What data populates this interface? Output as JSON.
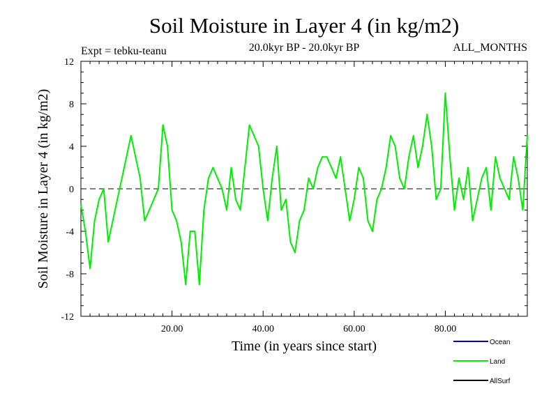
{
  "chart_data": {
    "type": "line",
    "title": "Soil Moisture in Layer 4 (in kg/m2)",
    "experiment": "Expt = tebku-teanu",
    "period": "20.0kyr BP - 20.0kyr BP",
    "months": "ALL_MONTHS",
    "xlabel": "Time (in years since start)",
    "ylabel": "Soil Moisture in Layer 4 (in kg/m2)",
    "xlim": [
      0,
      98
    ],
    "ylim": [
      -12,
      12
    ],
    "x_ticks": [
      20,
      40,
      60,
      80
    ],
    "x_tick_labels": [
      "20.00",
      "40.00",
      "60.00",
      "80.00"
    ],
    "y_ticks": [
      -12,
      -8,
      -4,
      0,
      4,
      8,
      12
    ],
    "y_tick_labels": [
      "-12",
      "-8",
      "-4",
      "0",
      "4",
      "8",
      "12"
    ],
    "zero_line": {
      "value": 0,
      "style": "dashed"
    },
    "legend": [
      {
        "name": "Ocean",
        "color": "#0000cc"
      },
      {
        "name": "Land",
        "color": "#00ee00"
      },
      {
        "name": "AllSurf",
        "color": "#000000"
      }
    ],
    "series": [
      {
        "name": "Land",
        "color": "#00ee00",
        "x": [
          0,
          1,
          2,
          3,
          4,
          5,
          6,
          7,
          8,
          9,
          10,
          11,
          12,
          13,
          14,
          15,
          16,
          17,
          18,
          19,
          20,
          21,
          22,
          23,
          24,
          25,
          26,
          27,
          28,
          29,
          30,
          31,
          32,
          33,
          34,
          35,
          36,
          37,
          38,
          39,
          40,
          41,
          42,
          43,
          44,
          45,
          46,
          47,
          48,
          49,
          50,
          51,
          52,
          53,
          54,
          55,
          56,
          57,
          58,
          59,
          60,
          61,
          62,
          63,
          64,
          65,
          66,
          67,
          68,
          69,
          70,
          71,
          72,
          73,
          74,
          75,
          76,
          77,
          78,
          79,
          80,
          81,
          82,
          83,
          84,
          85,
          86,
          87,
          88,
          89,
          90,
          91,
          92,
          93,
          94,
          95,
          96,
          97,
          98
        ],
        "values": [
          -1.5,
          -4,
          -7.5,
          -3,
          -1,
          0,
          -5,
          -3,
          -1,
          1,
          3,
          5,
          3,
          1,
          -3,
          -2,
          -1,
          0,
          6,
          4,
          -2,
          -3,
          -5,
          -9,
          -4,
          -4,
          -9,
          -2,
          1,
          2,
          1,
          0,
          -2,
          2,
          -1,
          -2,
          2,
          6,
          5,
          4,
          0,
          -3,
          1,
          4,
          -2,
          -1,
          -5,
          -6,
          -3,
          -2,
          1,
          0,
          2,
          3,
          3,
          2,
          1,
          3,
          0,
          -3,
          -1,
          2,
          1,
          -3,
          -4,
          -1,
          0,
          2,
          5,
          4,
          1,
          0,
          3,
          5,
          2,
          4,
          7,
          4,
          -1,
          0,
          9,
          3,
          -2,
          1,
          -1,
          2,
          -3,
          -1,
          1,
          2,
          -2,
          3,
          1,
          0,
          -1,
          3,
          1,
          -2,
          5
        ]
      }
    ]
  }
}
